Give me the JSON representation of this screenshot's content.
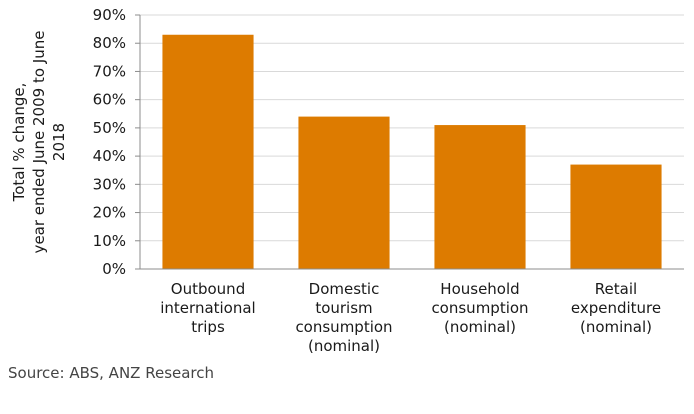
{
  "chart_data": {
    "type": "bar",
    "categories": [
      [
        "Outbound",
        "international",
        "trips"
      ],
      [
        "Domestic",
        "tourism",
        "consumption",
        "(nominal)"
      ],
      [
        "Household",
        "consumption",
        "(nominal)"
      ],
      [
        "Retail",
        "expenditure",
        "(nominal)"
      ]
    ],
    "values": [
      83,
      54,
      51,
      37
    ],
    "ylabel": [
      "Total % change,",
      "year ended June 2009 to June",
      "2018"
    ],
    "ylim": [
      0,
      90
    ],
    "yticks": [
      "0%",
      "10%",
      "20%",
      "30%",
      "40%",
      "50%",
      "60%",
      "70%",
      "80%",
      "90%"
    ],
    "grid": true,
    "bar_color": "#DD7B00",
    "grid_color": "#D9D9D9"
  },
  "source": "Source: ABS, ANZ Research"
}
